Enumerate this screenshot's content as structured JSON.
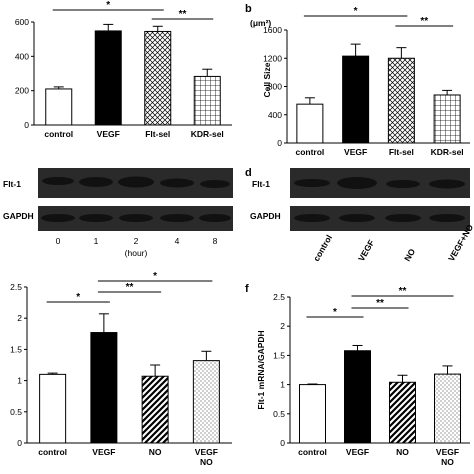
{
  "panels": {
    "a": {
      "letter": "",
      "ylabel": ""
    },
    "b": {
      "letter": "b",
      "ylabel": "Cell Size",
      "unit": "(μm²)"
    },
    "c": {
      "letter": ""
    },
    "d": {
      "letter": "d"
    },
    "e": {
      "letter": "",
      "ylabel": ""
    },
    "f": {
      "letter": "f",
      "ylabel": "Flt-1 mRNA/GAPDH"
    }
  },
  "blots": {
    "c": {
      "row_labels": [
        "Flt-1",
        "GAPDH"
      ],
      "lanes": [
        "0",
        "1",
        "2",
        "4",
        "8"
      ],
      "axis_label": "(hour)"
    },
    "d": {
      "row_labels": [
        "Flt-1",
        "GAPDH"
      ],
      "lanes": [
        "control",
        "VEGF",
        "NO",
        "VEGF+NO"
      ]
    }
  },
  "chart_data": [
    {
      "panel": "a",
      "type": "bar",
      "categories": [
        "control",
        "VEGF",
        "Flt-sel",
        "KDR-sel"
      ],
      "values": [
        210,
        548,
        545,
        283
      ],
      "errors": [
        12,
        38,
        30,
        42
      ],
      "fills": [
        "white",
        "black",
        "crosshatch",
        "grid"
      ],
      "ylim": [
        0,
        600
      ],
      "yticks": [
        "0",
        "200",
        "400",
        "600"
      ],
      "significance": [
        {
          "from": 0,
          "to": 2,
          "label": "*"
        },
        {
          "from": 2,
          "to": 3,
          "label": "**"
        }
      ]
    },
    {
      "panel": "b",
      "type": "bar",
      "categories": [
        "control",
        "VEGF",
        "Flt-sel",
        "KDR-sel"
      ],
      "values": [
        550,
        1230,
        1200,
        680
      ],
      "errors": [
        90,
        170,
        150,
        65
      ],
      "fills": [
        "white",
        "black",
        "crosshatch",
        "grid"
      ],
      "ylim": [
        0,
        1600
      ],
      "yticks": [
        "0",
        "400",
        "800",
        "1200",
        "1600"
      ],
      "significance": [
        {
          "from": 0,
          "to": 2,
          "label": "*"
        },
        {
          "from": 2,
          "to": 3,
          "label": "**"
        }
      ]
    },
    {
      "panel": "e",
      "type": "bar",
      "categories": [
        "control",
        "VEGF",
        "NO",
        "VEGF\nNO"
      ],
      "values": [
        1.1,
        1.77,
        1.07,
        1.32
      ],
      "errors": [
        0.02,
        0.3,
        0.18,
        0.15
      ],
      "fills": [
        "white",
        "black",
        "diagonal",
        "dots"
      ],
      "ylim": [
        0,
        2.5
      ],
      "yticks": [
        "0",
        "0.5",
        "1",
        "1.5",
        "2",
        "2.5"
      ],
      "significance": [
        {
          "from": 0,
          "to": 1,
          "label": "*"
        },
        {
          "from": 1,
          "to": 2,
          "label": "**"
        },
        {
          "from": 1,
          "to": 3,
          "label": "*"
        }
      ]
    },
    {
      "panel": "f",
      "type": "bar",
      "categories": [
        "control",
        "VEGF",
        "NO",
        "VEGF\nNO"
      ],
      "values": [
        1.0,
        1.58,
        1.04,
        1.18
      ],
      "errors": [
        0.01,
        0.09,
        0.12,
        0.14
      ],
      "fills": [
        "white",
        "black",
        "diagonal",
        "dots"
      ],
      "ylim": [
        0,
        2.5
      ],
      "yticks": [
        "0",
        "0.5",
        "1",
        "1.5",
        "2",
        "2.5"
      ],
      "significance": [
        {
          "from": 0,
          "to": 1,
          "label": "*"
        },
        {
          "from": 1,
          "to": 2,
          "label": "**"
        },
        {
          "from": 1,
          "to": 3,
          "label": "**"
        }
      ]
    }
  ]
}
